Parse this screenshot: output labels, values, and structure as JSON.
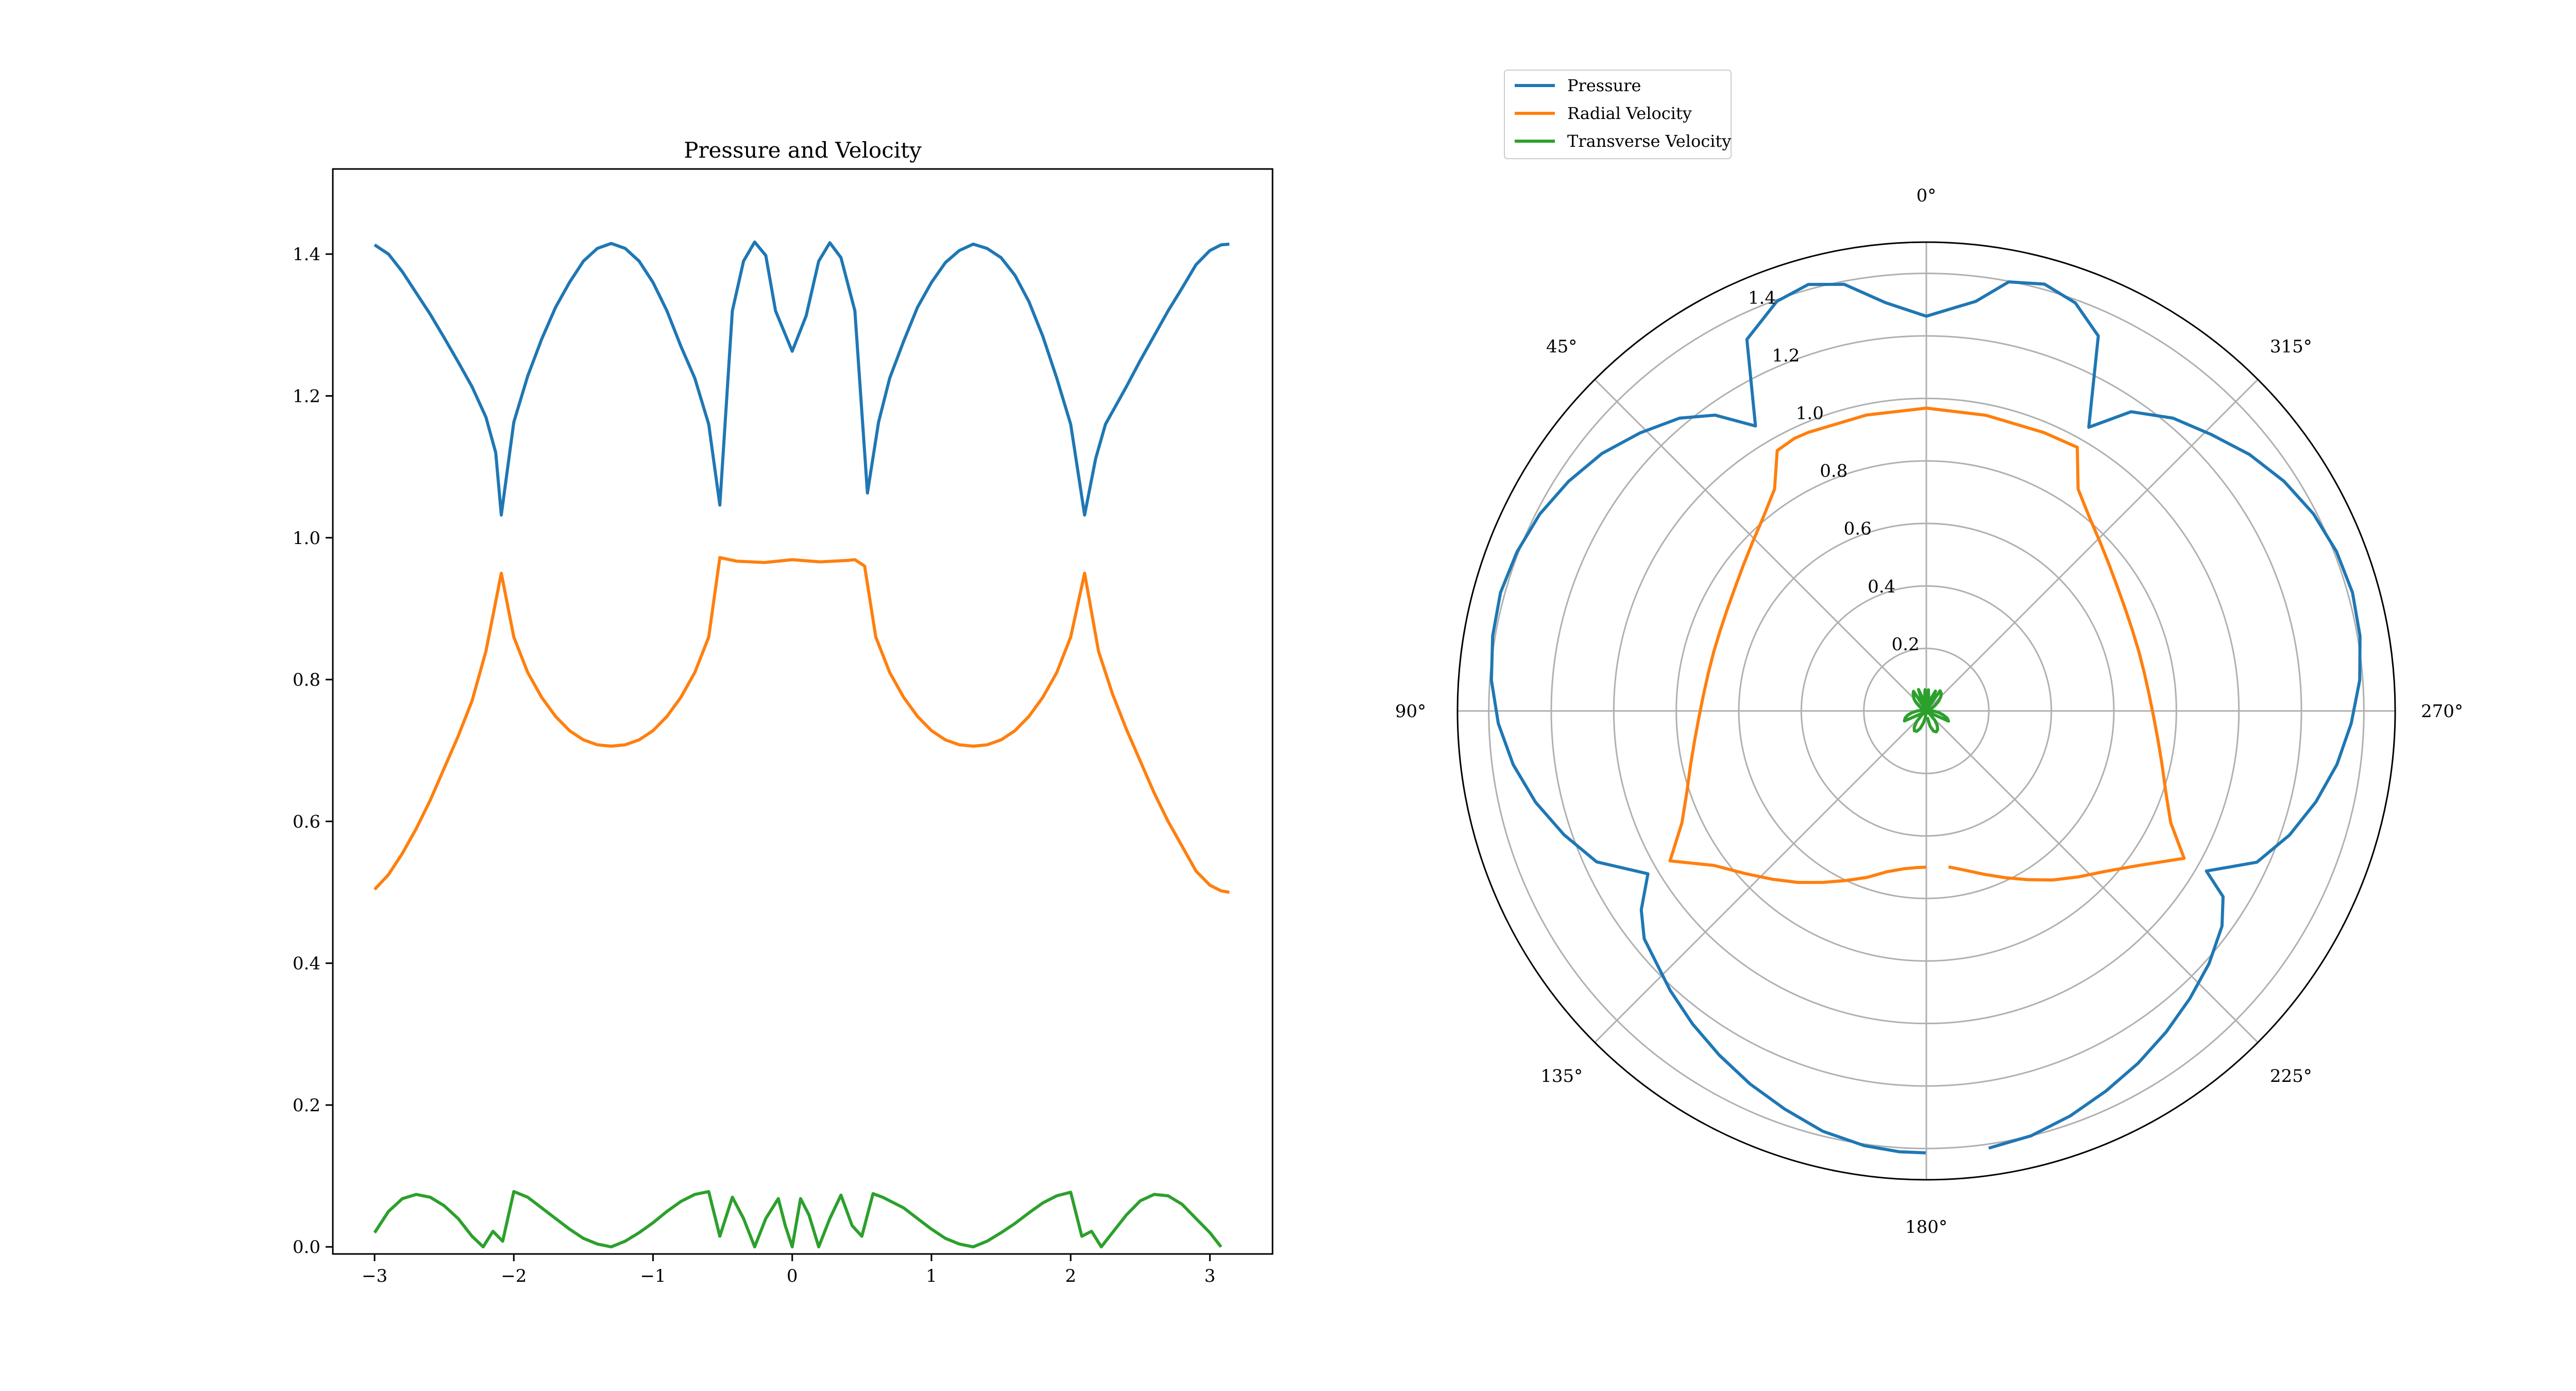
{
  "chart_data": [
    {
      "type": "line",
      "title": "Pressure and Velocity",
      "xlabel": "",
      "ylabel": "",
      "xlim": [
        -3.3,
        3.45
      ],
      "ylim": [
        -0.01,
        1.52
      ],
      "xticks": [
        -3,
        -2,
        -1,
        0,
        1,
        2,
        3
      ],
      "xtick_labels": [
        "−3",
        "−2",
        "−1",
        "0",
        "1",
        "2",
        "3"
      ],
      "yticks": [
        0.0,
        0.2,
        0.4,
        0.6,
        0.8,
        1.0,
        1.2,
        1.4
      ],
      "ytick_labels": [
        "0.0",
        "0.2",
        "0.4",
        "0.6",
        "0.8",
        "1.0",
        "1.2",
        "1.4"
      ],
      "grid": false,
      "series": [
        {
          "name": "Pressure",
          "color": "#1f77b4",
          "points": [
            [
              -3.0,
              1.413
            ],
            [
              -2.9,
              1.4
            ],
            [
              -2.8,
              1.375
            ],
            [
              -2.7,
              1.345
            ],
            [
              -2.6,
              1.315
            ],
            [
              -2.5,
              1.282
            ],
            [
              -2.4,
              1.248
            ],
            [
              -2.3,
              1.213
            ],
            [
              -2.2,
              1.17
            ],
            [
              -2.13,
              1.12
            ],
            [
              -2.09,
              1.032
            ],
            [
              -2.0,
              1.163
            ],
            [
              -1.9,
              1.228
            ],
            [
              -1.8,
              1.28
            ],
            [
              -1.7,
              1.325
            ],
            [
              -1.6,
              1.36
            ],
            [
              -1.5,
              1.39
            ],
            [
              -1.4,
              1.408
            ],
            [
              -1.3,
              1.415
            ],
            [
              -1.2,
              1.408
            ],
            [
              -1.1,
              1.39
            ],
            [
              -1.0,
              1.36
            ],
            [
              -0.9,
              1.32
            ],
            [
              -0.8,
              1.27
            ],
            [
              -0.7,
              1.225
            ],
            [
              -0.6,
              1.16
            ],
            [
              -0.52,
              1.046
            ],
            [
              -0.43,
              1.32
            ],
            [
              -0.35,
              1.39
            ],
            [
              -0.27,
              1.417
            ],
            [
              -0.19,
              1.398
            ],
            [
              -0.12,
              1.32
            ],
            [
              0.0,
              1.263
            ],
            [
              0.1,
              1.313
            ],
            [
              0.19,
              1.39
            ],
            [
              0.27,
              1.416
            ],
            [
              0.35,
              1.395
            ],
            [
              0.45,
              1.32
            ],
            [
              0.54,
              1.063
            ],
            [
              0.62,
              1.163
            ],
            [
              0.7,
              1.225
            ],
            [
              0.8,
              1.277
            ],
            [
              0.9,
              1.325
            ],
            [
              1.0,
              1.36
            ],
            [
              1.1,
              1.388
            ],
            [
              1.2,
              1.405
            ],
            [
              1.3,
              1.414
            ],
            [
              1.4,
              1.408
            ],
            [
              1.5,
              1.395
            ],
            [
              1.6,
              1.37
            ],
            [
              1.7,
              1.333
            ],
            [
              1.8,
              1.284
            ],
            [
              1.9,
              1.225
            ],
            [
              2.0,
              1.16
            ],
            [
              2.1,
              1.032
            ],
            [
              2.18,
              1.112
            ],
            [
              2.25,
              1.16
            ],
            [
              2.4,
              1.213
            ],
            [
              2.5,
              1.25
            ],
            [
              2.6,
              1.285
            ],
            [
              2.7,
              1.32
            ],
            [
              2.8,
              1.352
            ],
            [
              2.9,
              1.385
            ],
            [
              3.0,
              1.405
            ],
            [
              3.08,
              1.413
            ],
            [
              3.14,
              1.414
            ]
          ]
        },
        {
          "name": "Radial Velocity",
          "color": "#ff7f0e",
          "points": [
            [
              -3.0,
              0.504
            ],
            [
              -2.9,
              0.525
            ],
            [
              -2.8,
              0.555
            ],
            [
              -2.7,
              0.59
            ],
            [
              -2.6,
              0.63
            ],
            [
              -2.5,
              0.675
            ],
            [
              -2.4,
              0.72
            ],
            [
              -2.3,
              0.77
            ],
            [
              -2.2,
              0.84
            ],
            [
              -2.09,
              0.95
            ],
            [
              -2.0,
              0.86
            ],
            [
              -1.9,
              0.81
            ],
            [
              -1.8,
              0.775
            ],
            [
              -1.7,
              0.748
            ],
            [
              -1.6,
              0.728
            ],
            [
              -1.5,
              0.715
            ],
            [
              -1.4,
              0.708
            ],
            [
              -1.3,
              0.706
            ],
            [
              -1.2,
              0.708
            ],
            [
              -1.1,
              0.715
            ],
            [
              -1.0,
              0.728
            ],
            [
              -0.9,
              0.748
            ],
            [
              -0.8,
              0.775
            ],
            [
              -0.7,
              0.81
            ],
            [
              -0.6,
              0.86
            ],
            [
              -0.52,
              0.972
            ],
            [
              -0.4,
              0.967
            ],
            [
              -0.2,
              0.965
            ],
            [
              0.0,
              0.969
            ],
            [
              0.2,
              0.966
            ],
            [
              0.4,
              0.968
            ],
            [
              0.45,
              0.969
            ],
            [
              0.52,
              0.96
            ],
            [
              0.6,
              0.86
            ],
            [
              0.7,
              0.81
            ],
            [
              0.8,
              0.775
            ],
            [
              0.9,
              0.748
            ],
            [
              1.0,
              0.728
            ],
            [
              1.1,
              0.715
            ],
            [
              1.2,
              0.708
            ],
            [
              1.3,
              0.706
            ],
            [
              1.4,
              0.708
            ],
            [
              1.5,
              0.715
            ],
            [
              1.6,
              0.728
            ],
            [
              1.7,
              0.748
            ],
            [
              1.8,
              0.775
            ],
            [
              1.9,
              0.81
            ],
            [
              2.0,
              0.86
            ],
            [
              2.1,
              0.95
            ],
            [
              2.2,
              0.84
            ],
            [
              2.3,
              0.78
            ],
            [
              2.4,
              0.73
            ],
            [
              2.5,
              0.685
            ],
            [
              2.6,
              0.64
            ],
            [
              2.7,
              0.6
            ],
            [
              2.8,
              0.565
            ],
            [
              2.9,
              0.53
            ],
            [
              3.0,
              0.51
            ],
            [
              3.08,
              0.502
            ],
            [
              3.14,
              0.5
            ]
          ]
        },
        {
          "name": "Transverse Velocity",
          "color": "#2ca02c",
          "points": [
            [
              -3.0,
              0.02
            ],
            [
              -2.9,
              0.05
            ],
            [
              -2.8,
              0.068
            ],
            [
              -2.7,
              0.074
            ],
            [
              -2.6,
              0.07
            ],
            [
              -2.5,
              0.058
            ],
            [
              -2.4,
              0.04
            ],
            [
              -2.3,
              0.015
            ],
            [
              -2.22,
              0.0
            ],
            [
              -2.15,
              0.022
            ],
            [
              -2.08,
              0.008
            ],
            [
              -2.0,
              0.078
            ],
            [
              -1.9,
              0.07
            ],
            [
              -1.8,
              0.055
            ],
            [
              -1.7,
              0.04
            ],
            [
              -1.6,
              0.025
            ],
            [
              -1.5,
              0.012
            ],
            [
              -1.4,
              0.004
            ],
            [
              -1.3,
              0.0
            ],
            [
              -1.2,
              0.008
            ],
            [
              -1.1,
              0.02
            ],
            [
              -1.0,
              0.034
            ],
            [
              -0.9,
              0.05
            ],
            [
              -0.8,
              0.064
            ],
            [
              -0.7,
              0.074
            ],
            [
              -0.6,
              0.078
            ],
            [
              -0.52,
              0.015
            ],
            [
              -0.43,
              0.07
            ],
            [
              -0.35,
              0.04
            ],
            [
              -0.27,
              0.0
            ],
            [
              -0.19,
              0.04
            ],
            [
              -0.1,
              0.068
            ],
            [
              -0.05,
              0.03
            ],
            [
              0.0,
              0.0
            ],
            [
              0.06,
              0.068
            ],
            [
              0.12,
              0.045
            ],
            [
              0.19,
              0.0
            ],
            [
              0.27,
              0.04
            ],
            [
              0.35,
              0.073
            ],
            [
              0.43,
              0.03
            ],
            [
              0.5,
              0.015
            ],
            [
              0.58,
              0.075
            ],
            [
              0.65,
              0.07
            ],
            [
              0.8,
              0.055
            ],
            [
              0.9,
              0.04
            ],
            [
              1.0,
              0.025
            ],
            [
              1.1,
              0.012
            ],
            [
              1.2,
              0.004
            ],
            [
              1.3,
              0.0
            ],
            [
              1.4,
              0.008
            ],
            [
              1.5,
              0.02
            ],
            [
              1.6,
              0.033
            ],
            [
              1.7,
              0.048
            ],
            [
              1.8,
              0.062
            ],
            [
              1.9,
              0.072
            ],
            [
              2.0,
              0.077
            ],
            [
              2.08,
              0.015
            ],
            [
              2.15,
              0.022
            ],
            [
              2.22,
              0.0
            ],
            [
              2.3,
              0.02
            ],
            [
              2.4,
              0.045
            ],
            [
              2.5,
              0.065
            ],
            [
              2.6,
              0.074
            ],
            [
              2.7,
              0.072
            ],
            [
              2.8,
              0.06
            ],
            [
              2.9,
              0.04
            ],
            [
              3.0,
              0.02
            ],
            [
              3.08,
              0.0
            ]
          ]
        }
      ]
    },
    {
      "type": "line",
      "projection": "polar",
      "title": "",
      "theta_zero": "top",
      "theta_direction": "counterclockwise",
      "rlim": [
        0,
        1.5
      ],
      "rticks": [
        0.2,
        0.4,
        0.6,
        0.8,
        1.0,
        1.2,
        1.4
      ],
      "rtick_labels": [
        "0.2",
        "0.4",
        "0.6",
        "0.8",
        "1.0",
        "1.2",
        "1.4"
      ],
      "theta_ticks": [
        0,
        45,
        90,
        135,
        180,
        225,
        270,
        315
      ],
      "theta_tick_labels": [
        "0°",
        "45°",
        "90°",
        "135°",
        "180°",
        "225°",
        "270°",
        "315°"
      ],
      "grid": true,
      "legend": {
        "placement": "top-left",
        "entries": [
          "Pressure",
          "Radial Velocity",
          "Transverse Velocity"
        ]
      },
      "series_source": "same series as left panel; x values are angles in radians, y values are radii"
    }
  ]
}
